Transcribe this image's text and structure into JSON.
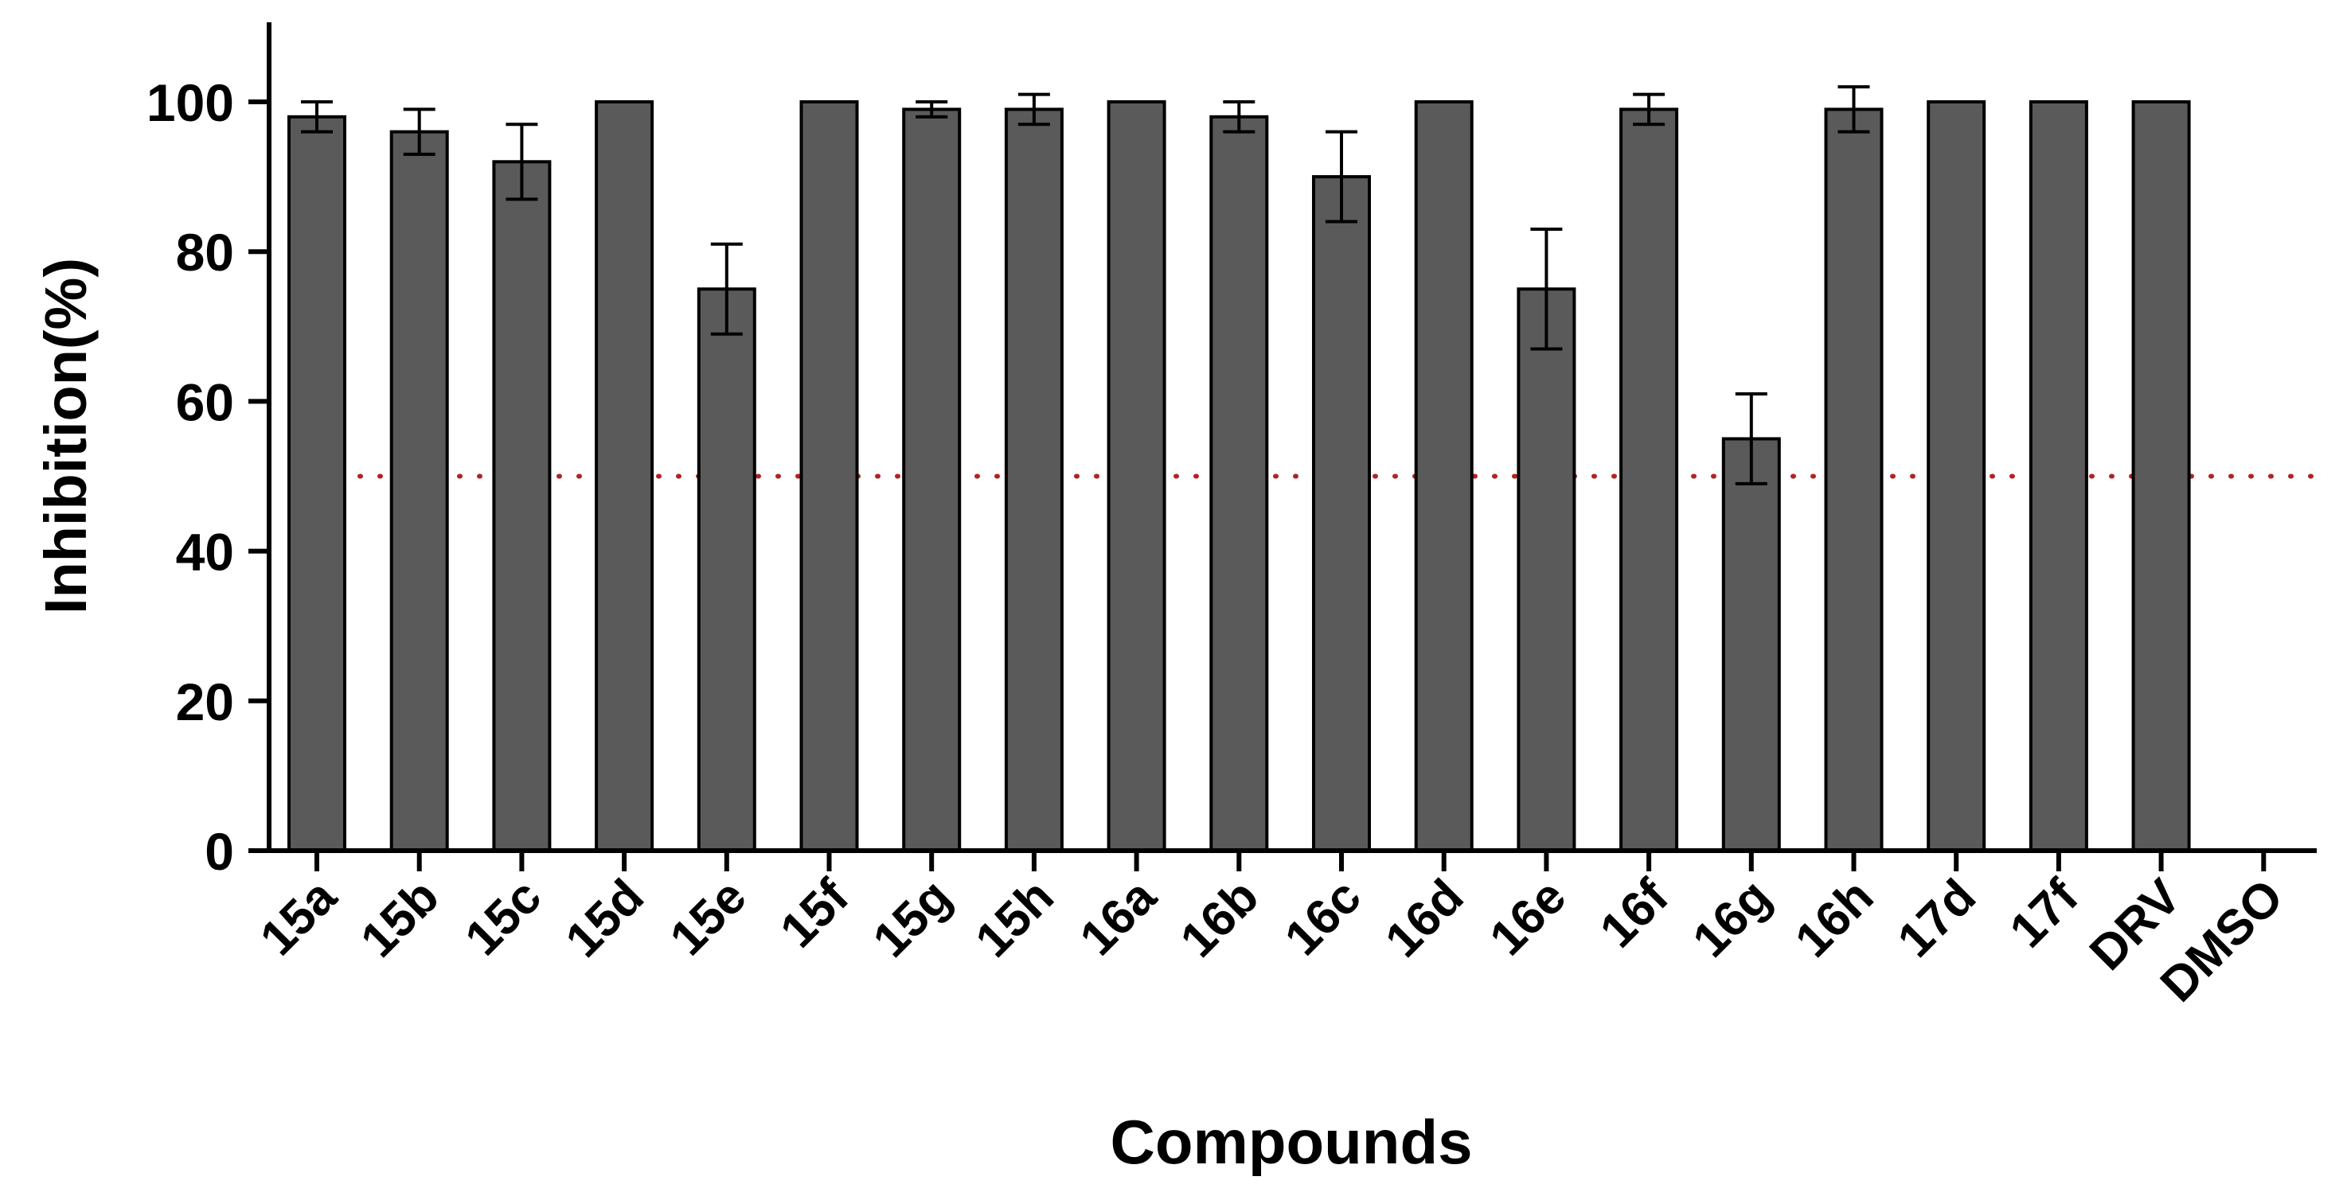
{
  "chart_data": {
    "type": "bar",
    "title": "",
    "xlabel": "Compounds",
    "ylabel": "Inhibition(%)",
    "ylim": [
      0,
      110
    ],
    "yticks": [
      0,
      20,
      40,
      60,
      80,
      100
    ],
    "grid": false,
    "legend": "none",
    "categories": [
      "15a",
      "15b",
      "15c",
      "15d",
      "15e",
      "15f",
      "15g",
      "15h",
      "16a",
      "16b",
      "16c",
      "16d",
      "16e",
      "16f",
      "16g",
      "16h",
      "17d",
      "17f",
      "DRV",
      "DMSO"
    ],
    "values": [
      98,
      96,
      92,
      100,
      75,
      100,
      99,
      99,
      100,
      98,
      90,
      100,
      75,
      99,
      55,
      99,
      100,
      100,
      100,
      0
    ],
    "errors": [
      2,
      3,
      5,
      0,
      6,
      0,
      1,
      2,
      0,
      2,
      6,
      0,
      8,
      2,
      6,
      3,
      0,
      0,
      0,
      0
    ],
    "reference_line": {
      "y": 50,
      "style": "dotted",
      "color": "#b22222"
    },
    "colors": {
      "bar": "#5a5a5a",
      "bar_edge": "#000000",
      "axis": "#000000"
    }
  }
}
